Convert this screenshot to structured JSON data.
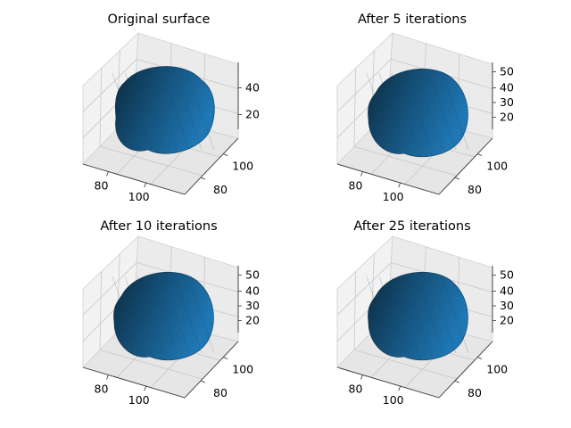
{
  "chart_data": [
    {
      "type": "surface3d",
      "title": "Original surface",
      "x_ticks": [
        "80",
        "100"
      ],
      "y_ticks": [
        "100",
        "80"
      ],
      "z_ticks": [
        "40",
        "20"
      ],
      "color": "#1f77b4"
    },
    {
      "type": "surface3d",
      "title": "After 5 iterations",
      "x_ticks": [
        "80",
        "100"
      ],
      "y_ticks": [
        "100",
        "80"
      ],
      "z_ticks": [
        "50",
        "40",
        "30",
        "20"
      ],
      "color": "#1f77b4"
    },
    {
      "type": "surface3d",
      "title": "After 10 iterations",
      "x_ticks": [
        "80",
        "100"
      ],
      "y_ticks": [
        "100",
        "80"
      ],
      "z_ticks": [
        "50",
        "40",
        "30",
        "20"
      ],
      "color": "#1f77b4"
    },
    {
      "type": "surface3d",
      "title": "After 25 iterations",
      "x_ticks": [
        "80",
        "100"
      ],
      "y_ticks": [
        "100",
        "80"
      ],
      "z_ticks": [
        "50",
        "40",
        "30",
        "20"
      ],
      "color": "#1f77b4"
    }
  ]
}
